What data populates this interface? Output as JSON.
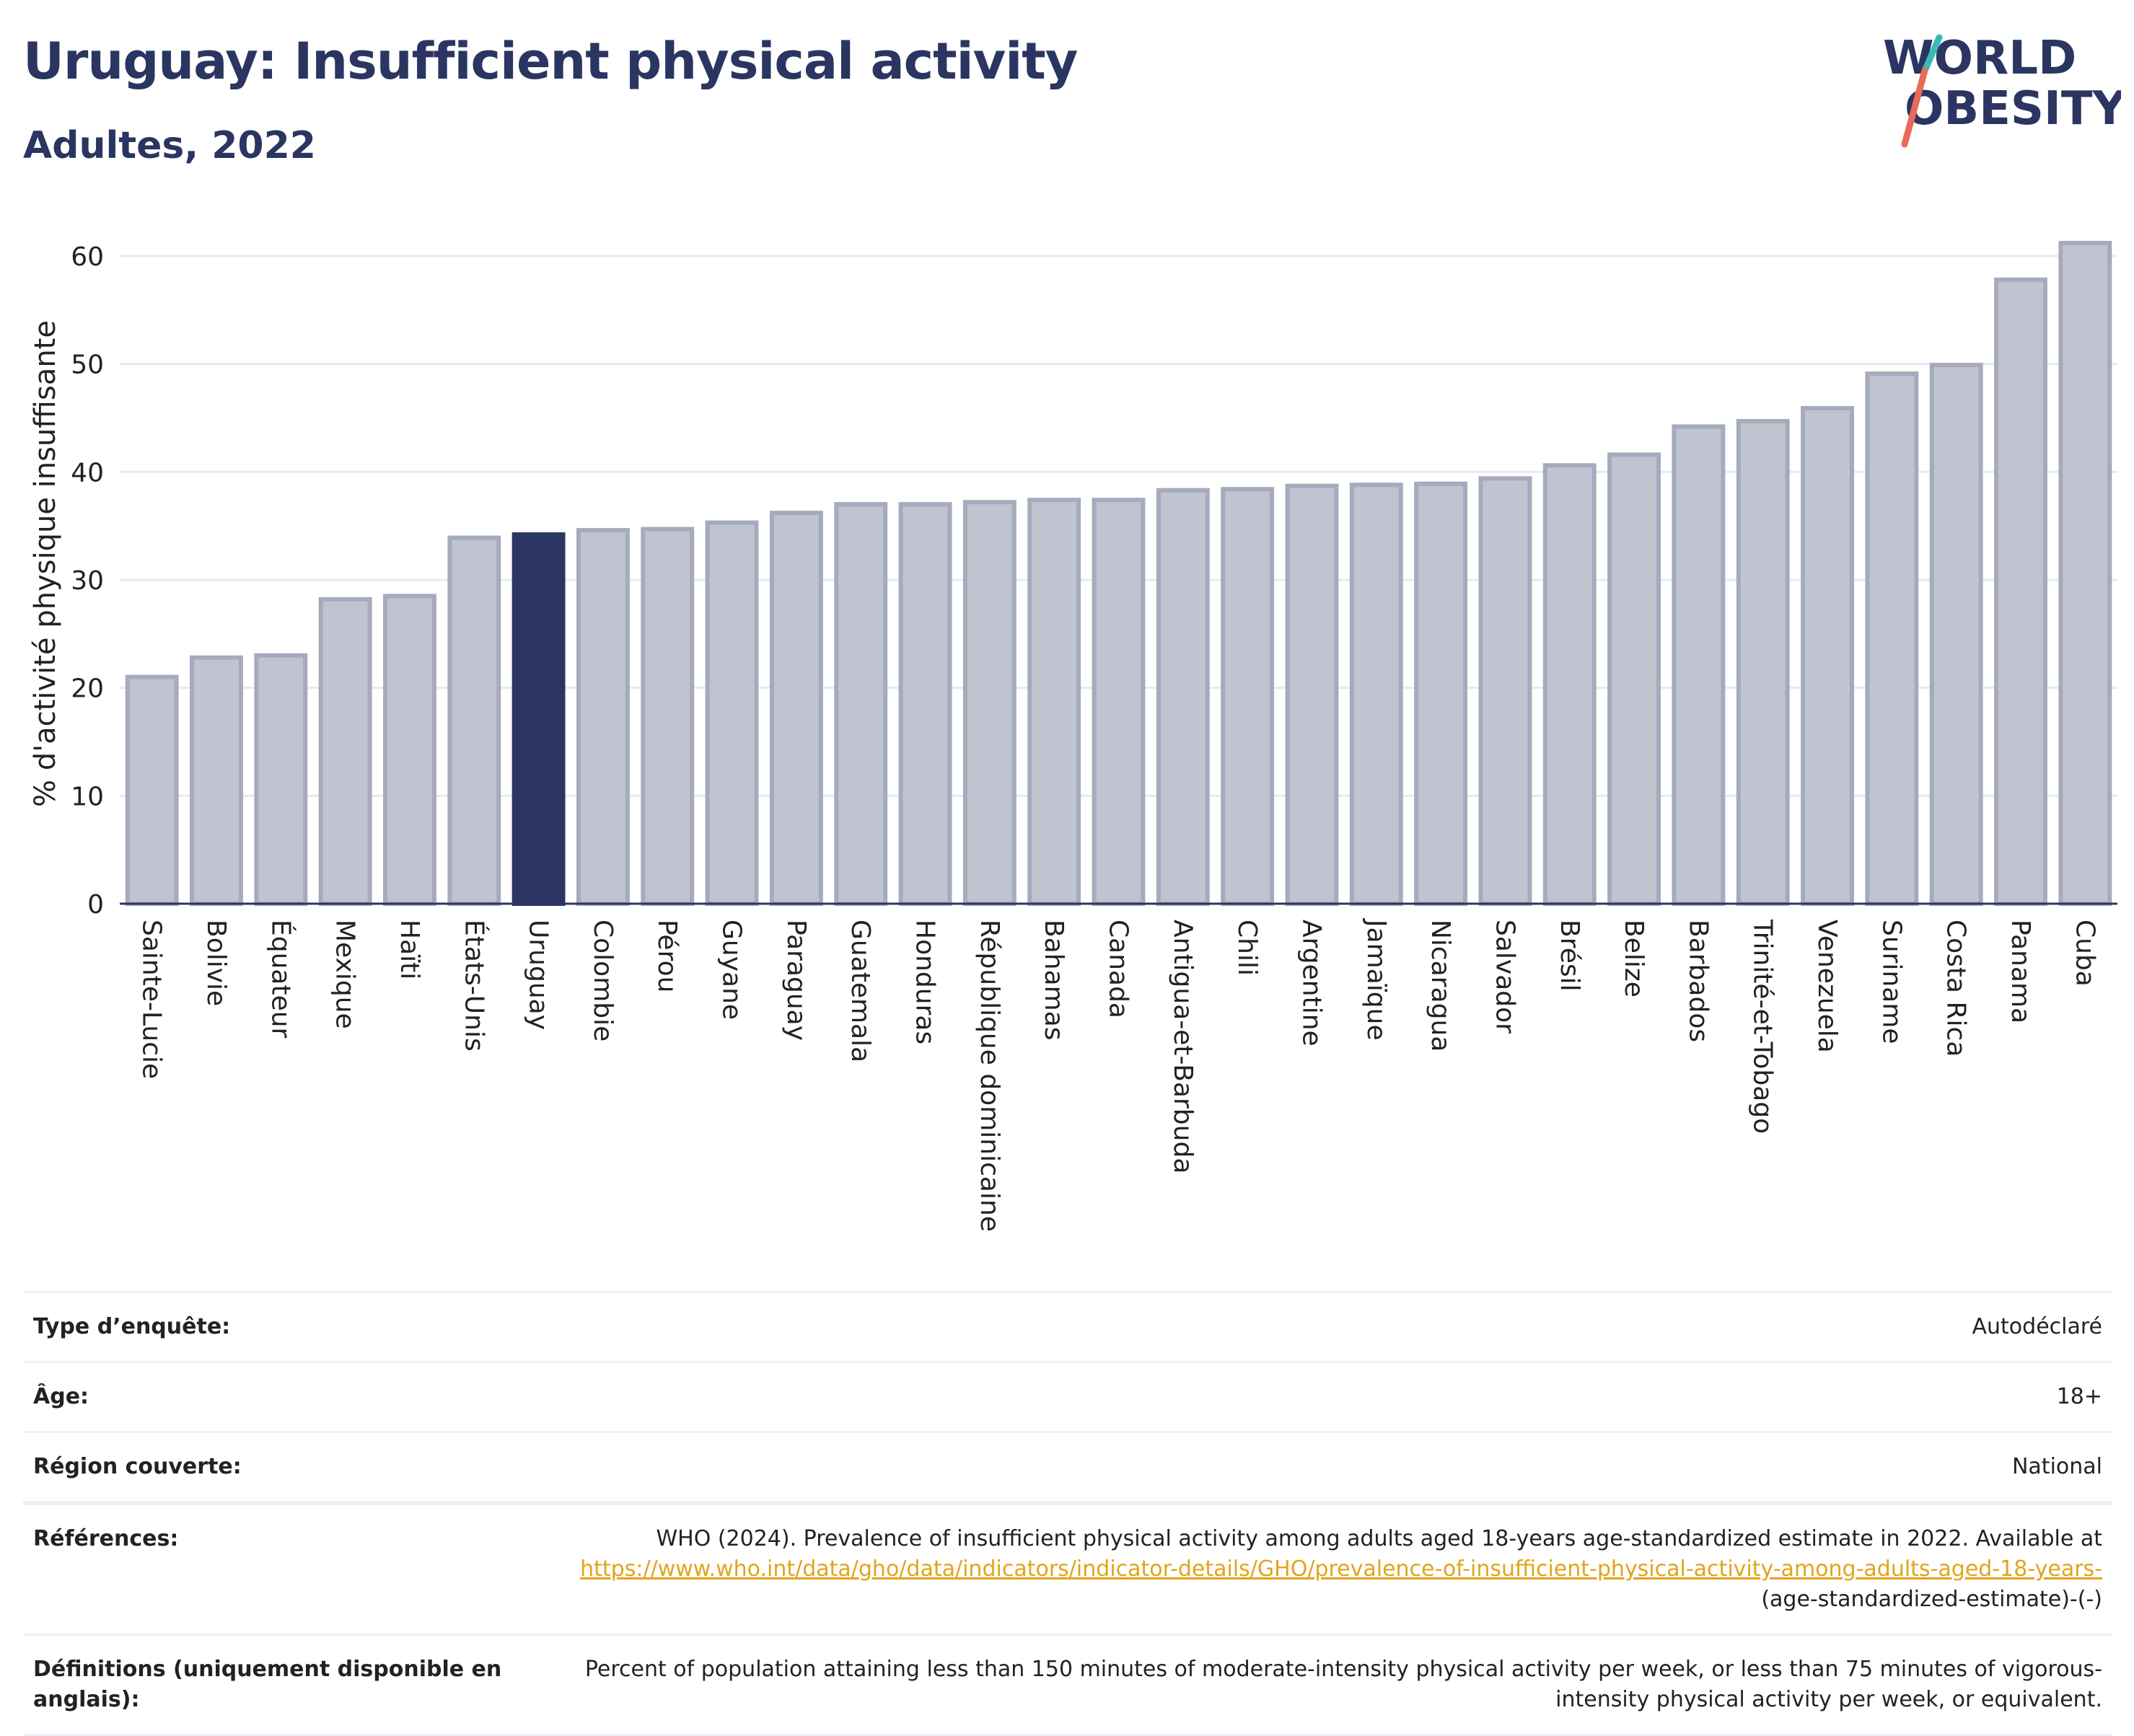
{
  "header": {
    "title": "Uruguay: Insufficient physical activity",
    "subtitle": "Adultes, 2022"
  },
  "logo": {
    "line1": "WORLD",
    "line2": "OBESITY"
  },
  "colors": {
    "highlight": "#2b3561",
    "bar": "#c0c3d0",
    "bar_border": "#a6aabd",
    "accent_link": "#e2a41c"
  },
  "chart_data": {
    "type": "bar",
    "ylabel": "% d'activité physique insuffisante",
    "ylim": [
      0,
      63
    ],
    "yticks": [
      0,
      10,
      20,
      30,
      40,
      50,
      60
    ],
    "grid": true,
    "highlight": "Uruguay",
    "categories": [
      "Sainte-Lucie",
      "Bolivie",
      "Équateur",
      "Mexique",
      "Haïti",
      "États-Unis",
      "Uruguay",
      "Colombie",
      "Pérou",
      "Guyane",
      "Paraguay",
      "Guatemala",
      "Honduras",
      "République dominicaine",
      "Bahamas",
      "Canada",
      "Antigua-et-Barbuda",
      "Chili",
      "Argentine",
      "Jamaïque",
      "Nicaragua",
      "Salvador",
      "Brésil",
      "Belize",
      "Barbados",
      "Trinité-et-Tobago",
      "Venezuela",
      "Suriname",
      "Costa Rica",
      "Panama",
      "Cuba"
    ],
    "values": [
      21.0,
      22.8,
      23.0,
      28.2,
      28.5,
      33.9,
      34.2,
      34.6,
      34.7,
      35.3,
      36.2,
      37.0,
      37.0,
      37.2,
      37.4,
      37.4,
      38.3,
      38.4,
      38.7,
      38.8,
      38.9,
      39.4,
      40.6,
      41.6,
      44.2,
      44.7,
      45.9,
      49.1,
      49.9,
      57.8,
      61.2
    ]
  },
  "meta": {
    "rows": [
      {
        "label": "Type d’enquête:",
        "value": "Autodéclaré"
      },
      {
        "label": "Âge:",
        "value": "18+"
      },
      {
        "label": "Région couverte:",
        "value": "National"
      }
    ],
    "references_label": "Références:",
    "references_text": "WHO (2024). Prevalence of insufficient physical activity among adults aged 18-years age-standardized estimate in 2022. Available at",
    "references_link": "https://www.who.int/data/gho/data/indicators/indicator-details/GHO/prevalence-of-insufficient-physical-activity-among-adults-aged-18-years-",
    "references_suffix": "(age-standardized-estimate)-(-)",
    "definitions_label": "Définitions (uniquement disponible en anglais):",
    "definitions_text": "Percent of population attaining less than 150 minutes of moderate-intensity physical activity per week, or less than 75 minutes of vigorous-intensity physical activity per week, or equivalent."
  }
}
